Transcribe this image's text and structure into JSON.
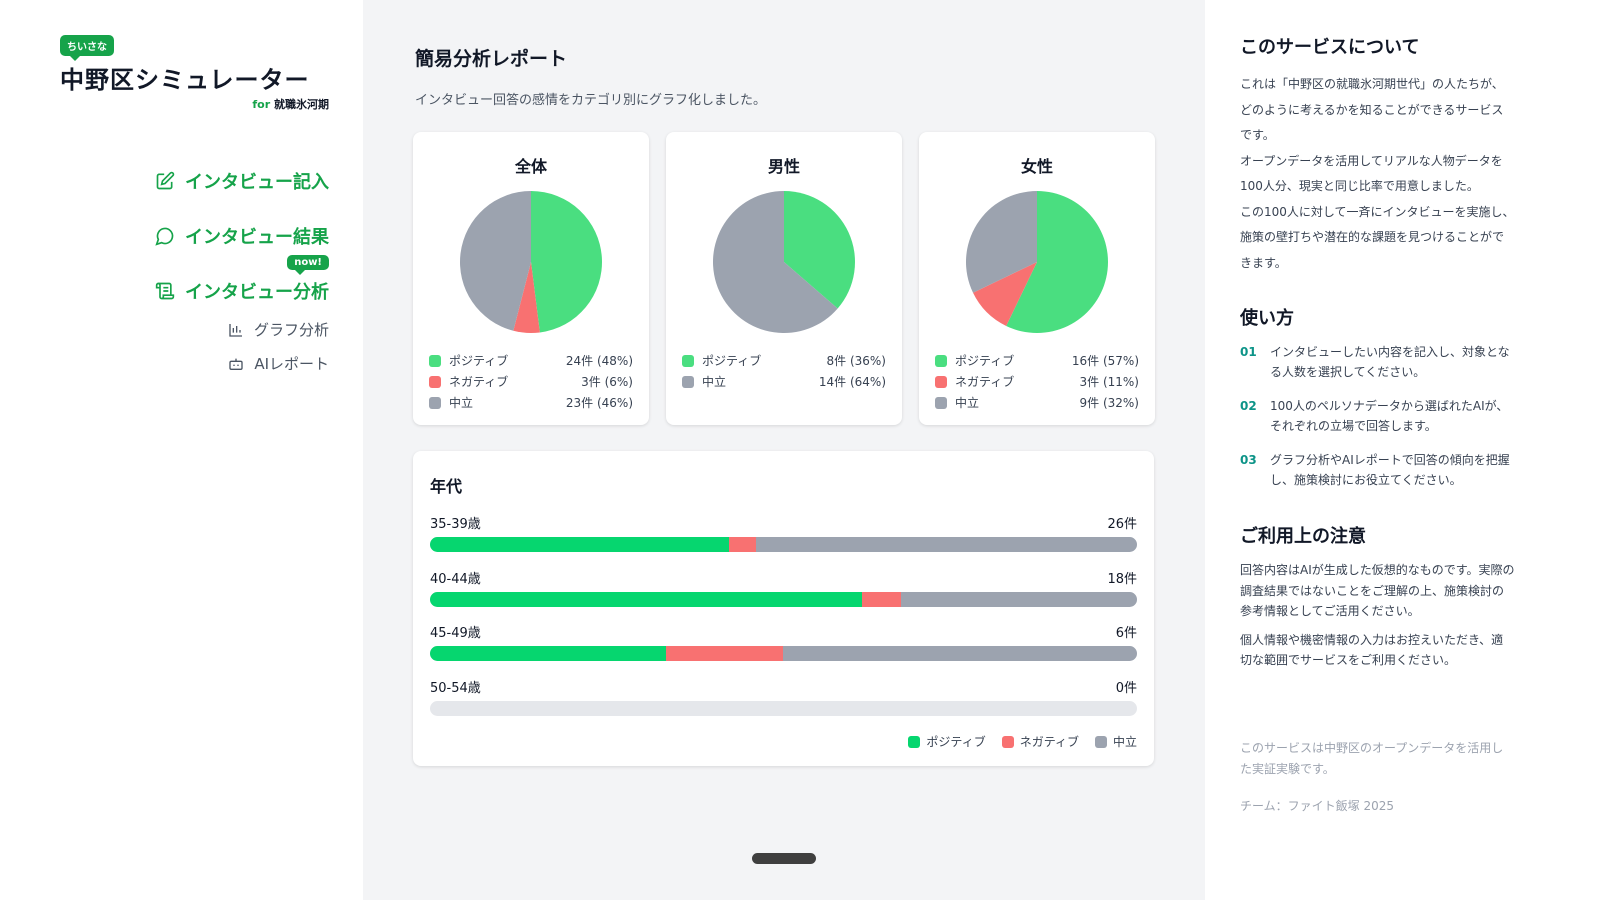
{
  "sidebar": {
    "badge": "ちいさな",
    "title": "中野区シミュレーター",
    "sub_for": "for",
    "sub_text": "就職氷河期",
    "nav": [
      {
        "label": "インタビュー記入",
        "icon": "edit-icon"
      },
      {
        "label": "インタビュー結果",
        "icon": "chat-bubble-icon"
      },
      {
        "label": "インタビュー分析",
        "icon": "scroll-icon",
        "badge": "now!"
      }
    ],
    "subnav": [
      {
        "label": "グラフ分析",
        "icon": "bar-chart-icon"
      },
      {
        "label": "AIレポート",
        "icon": "robot-icon"
      }
    ]
  },
  "main": {
    "title": "簡易分析レポート",
    "description": "インタビュー回答の感情をカテゴリ別にグラフ化しました。"
  },
  "colors": {
    "positive": "#4ade80",
    "negative": "#f87171",
    "neutral": "#9ca3af",
    "bar_positive": "#06d66f",
    "brand": "#16a34a"
  },
  "chart_data": [
    {
      "type": "pie",
      "title": "全体",
      "series": [
        {
          "name": "ポジティブ",
          "count": 24,
          "label": "24件 (48%)"
        },
        {
          "name": "ネガティブ",
          "count": 3,
          "label": "3件 (6%)"
        },
        {
          "name": "中立",
          "count": 23,
          "label": "23件 (46%)"
        }
      ]
    },
    {
      "type": "pie",
      "title": "男性",
      "series": [
        {
          "name": "ポジティブ",
          "count": 8,
          "label": "8件 (36%)"
        },
        {
          "name": "中立",
          "count": 14,
          "label": "14件 (64%)"
        }
      ]
    },
    {
      "type": "pie",
      "title": "女性",
      "series": [
        {
          "name": "ポジティブ",
          "count": 16,
          "label": "16件 (57%)"
        },
        {
          "name": "ネガティブ",
          "count": 3,
          "label": "3件 (11%)"
        },
        {
          "name": "中立",
          "count": 9,
          "label": "9件 (32%)"
        }
      ]
    },
    {
      "type": "bar",
      "stacked": true,
      "orientation": "horizontal",
      "title": "年代",
      "categories": [
        "35-39歳",
        "40-44歳",
        "45-49歳",
        "50-54歳"
      ],
      "totals": [
        "26件",
        "18件",
        "6件",
        "0件"
      ],
      "series": [
        {
          "name": "ポジティブ",
          "values": [
            11,
            11,
            2,
            0
          ]
        },
        {
          "name": "ネガティブ",
          "values": [
            1,
            1,
            1,
            0
          ]
        },
        {
          "name": "中立",
          "values": [
            14,
            6,
            3,
            0
          ]
        }
      ],
      "legend": "bottom-right"
    }
  ],
  "right": {
    "about_title": "このサービスについて",
    "about_paras": [
      "これは「中野区の就職氷河期世代」の人たちが、どのように考えるかを知ることができるサービスです。",
      "オープンデータを活用してリアルな人物データを100人分、現実と同じ比率で用意しました。",
      "この100人に対して一斉にインタビューを実施し、施策の壁打ちや潜在的な課題を見つけることができます。"
    ],
    "howto_title": "使い方",
    "steps": [
      {
        "num": "01",
        "text": "インタビューしたい内容を記入し、対象となる人数を選択してください。"
      },
      {
        "num": "02",
        "text": "100人のペルソナデータから選ばれたAIが、それぞれの立場で回答します。"
      },
      {
        "num": "03",
        "text": "グラフ分析やAIレポートで回答の傾向を把握し、施策検討にお役立てください。"
      }
    ],
    "notice_title": "ご利用上の注意",
    "notice_paras": [
      "回答内容はAIが生成した仮想的なものです。実際の調査結果ではないことをご理解の上、施策検討の参考情報としてご活用ください。",
      "個人情報や機密情報の入力はお控えいただき、適切な範囲でサービスをご利用ください。"
    ],
    "footer": "このサービスは中野区のオープンデータを活用した実証実験です。",
    "team": "チーム：ファイト飯塚 2025"
  }
}
